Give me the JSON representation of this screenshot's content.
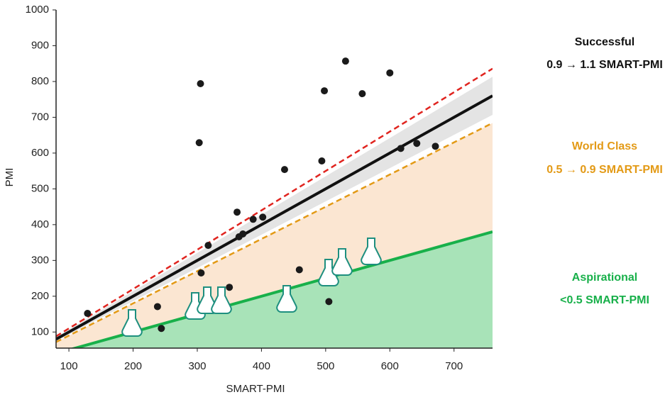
{
  "chart_data": {
    "type": "scatter",
    "x_label": "SMART-PMI",
    "y_label": "PMI",
    "xlim": [
      80,
      760
    ],
    "ylim": [
      55,
      1000
    ],
    "xticks": [
      100,
      200,
      300,
      400,
      500,
      600,
      700
    ],
    "yticks": [
      100,
      200,
      300,
      400,
      500,
      600,
      700,
      800,
      900,
      1000
    ],
    "color": "#1a1a1a",
    "x": [
      129,
      238,
      244,
      305,
      303,
      306,
      317,
      350,
      362,
      365,
      371,
      387,
      402,
      436,
      459,
      494,
      498,
      505,
      531,
      557,
      600,
      617,
      642,
      671
    ],
    "values": [
      152,
      171,
      110,
      794,
      629,
      265,
      342,
      225,
      435,
      366,
      374,
      415,
      421,
      554,
      274,
      578,
      774,
      185,
      857,
      766,
      824,
      613,
      627,
      619
    ],
    "bands": [
      {
        "lower": 0,
        "upper": 0.5,
        "color": "#a8e3b8"
      },
      {
        "lower": 0.5,
        "upper": 0.9,
        "color": "#fbe6d2"
      },
      {
        "lower": 0.93,
        "upper": 1.07,
        "color": "#e4e4e4"
      }
    ],
    "lines": [
      {
        "slope": 1.1,
        "color": "#e0241f",
        "dashed": true
      },
      {
        "slope": 1.0,
        "color": "#111111",
        "dashed": false
      },
      {
        "slope": 0.9,
        "color": "#e39a16",
        "dashed": true
      },
      {
        "slope": 0.5,
        "color": "#18b04a",
        "dashed": false
      }
    ],
    "annotations": [
      {
        "title": "Successful",
        "text": "0.9 → 1.1 SMART-PMI",
        "color": "#111111"
      },
      {
        "title": "World Class",
        "text": "0.5 → 0.9 SMART-PMI",
        "color": "#e39a16"
      },
      {
        "title": "Aspirational",
        "text": "<0.5 SMART-PMI",
        "color": "#18b04a"
      }
    ]
  }
}
